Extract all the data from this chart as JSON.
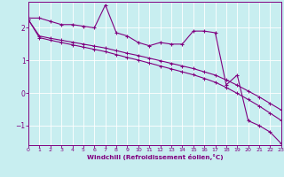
{
  "xlabel": "Windchill (Refroidissement éolien,°C)",
  "bg_color": "#c8eef0",
  "line_color": "#800080",
  "xlim": [
    0,
    23
  ],
  "ylim": [
    -1.6,
    2.8
  ],
  "yticks": [
    -1,
    0,
    1,
    2
  ],
  "xticks": [
    0,
    1,
    2,
    3,
    4,
    5,
    6,
    7,
    8,
    9,
    10,
    11,
    12,
    13,
    14,
    15,
    16,
    17,
    18,
    19,
    20,
    21,
    22,
    23
  ],
  "series1_x": [
    0,
    1,
    2,
    3,
    4,
    5,
    6,
    7,
    8,
    9,
    10,
    11,
    12,
    13,
    14,
    15,
    16,
    17,
    18,
    19,
    20,
    21,
    22,
    23
  ],
  "series1_y": [
    2.3,
    2.3,
    2.2,
    2.1,
    2.1,
    2.05,
    2.0,
    2.7,
    1.85,
    1.75,
    1.55,
    1.45,
    1.55,
    1.5,
    1.5,
    1.9,
    1.9,
    1.85,
    0.25,
    0.55,
    -0.85,
    -1.0,
    -1.2,
    -1.55
  ],
  "series2_x": [
    0,
    1,
    2,
    3,
    4,
    5,
    6,
    7,
    8,
    9,
    10,
    11,
    12,
    13,
    14,
    15,
    16,
    17,
    18,
    19,
    20,
    21,
    22,
    23
  ],
  "series2_y": [
    2.25,
    1.75,
    1.68,
    1.62,
    1.56,
    1.5,
    1.44,
    1.38,
    1.3,
    1.22,
    1.15,
    1.07,
    0.99,
    0.91,
    0.83,
    0.75,
    0.65,
    0.55,
    0.4,
    0.24,
    0.06,
    -0.12,
    -0.32,
    -0.52
  ],
  "series3_x": [
    0,
    1,
    2,
    3,
    4,
    5,
    6,
    7,
    8,
    9,
    10,
    11,
    12,
    13,
    14,
    15,
    16,
    17,
    18,
    19,
    20,
    21,
    22,
    23
  ],
  "series3_y": [
    2.25,
    1.7,
    1.62,
    1.55,
    1.48,
    1.41,
    1.34,
    1.27,
    1.18,
    1.09,
    1.01,
    0.92,
    0.83,
    0.74,
    0.65,
    0.56,
    0.45,
    0.33,
    0.17,
    -0.01,
    -0.2,
    -0.4,
    -0.62,
    -0.84
  ]
}
